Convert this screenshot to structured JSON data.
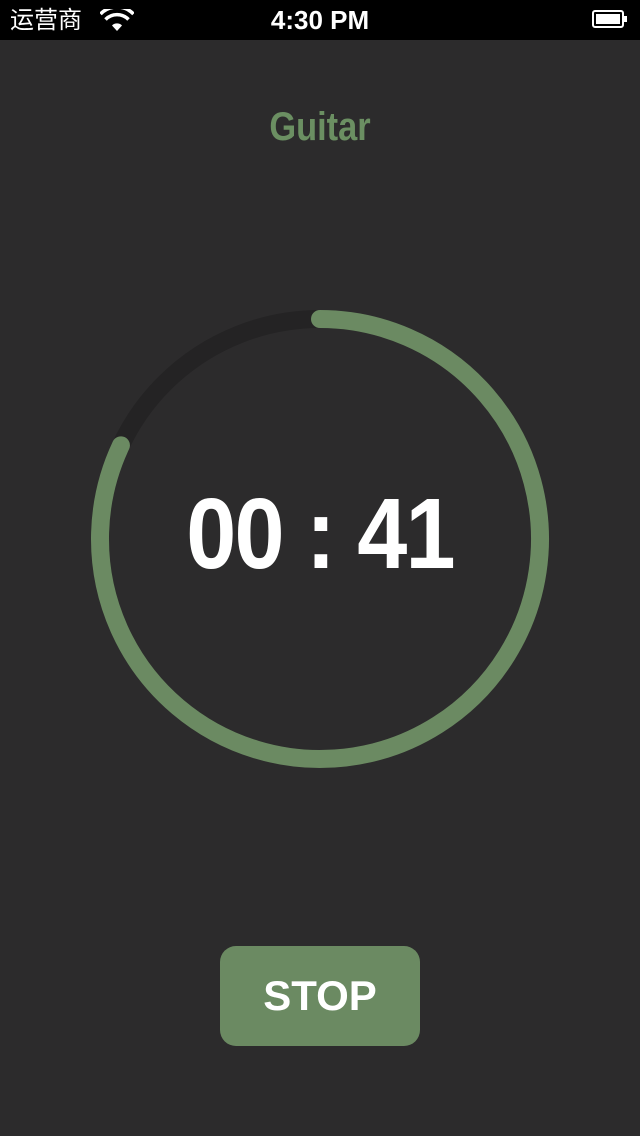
{
  "status_bar": {
    "carrier": "运营商",
    "time": "4:30 PM"
  },
  "title": "Guitar",
  "timer": {
    "display": "00 : 41",
    "progress_remaining_fraction": 0.82
  },
  "stop_button": {
    "label": "STOP"
  },
  "colors": {
    "background": "#2c2b2c",
    "accent": "#6b8a62",
    "ring_track": "#242324",
    "text": "#ffffff"
  },
  "icons": [
    "wifi-icon",
    "battery-icon"
  ]
}
